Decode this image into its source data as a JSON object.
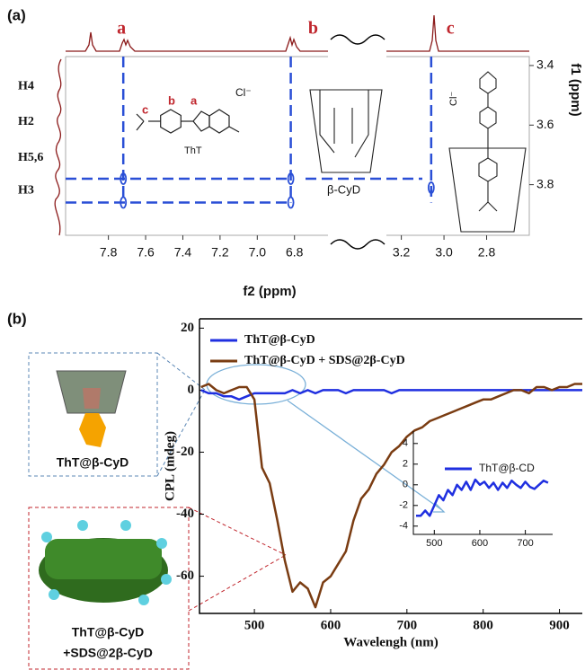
{
  "panels": [
    "(a)",
    "(b)"
  ],
  "chart_data": [
    {
      "type": "nmr-2d",
      "x_label": "f2 (ppm)",
      "y_label": "f1 (ppm)",
      "x_segments": [
        {
          "xlim": [
            8.03,
            6.62
          ],
          "xticks": [
            7.8,
            7.6,
            7.4,
            7.2,
            {
              "value": 7,
              "label": "7.0"
            },
            6.8
          ]
        },
        {
          "xlim": [
            3.27,
            2.6
          ],
          "xticks": [
            3.2,
            {
              "value": 3,
              "label": "3.0"
            },
            2.8
          ]
        }
      ],
      "ylim": [
        3.37,
        3.97
      ],
      "yticks": [
        3.4,
        3.6,
        3.8
      ],
      "peak_labels": [
        {
          "label": "a",
          "x": 7.73
        },
        {
          "label": "b",
          "x": 6.7
        },
        {
          "label": "c",
          "x": 2.97
        }
      ],
      "proton_labels": [
        {
          "label": "H4",
          "y": 3.47
        },
        {
          "label": "H2",
          "y": 3.59
        },
        {
          "label": "H5,6",
          "y": 3.71
        },
        {
          "label": "H3",
          "y": 3.82
        }
      ],
      "guide_x": [
        7.72,
        6.82,
        3.06
      ],
      "guide_y": [
        3.78,
        3.86
      ],
      "cross_peaks": {
        "x": [
          7.72,
          7.72,
          6.82,
          6.82,
          3.06
        ],
        "y": [
          3.78,
          3.86,
          3.78,
          3.86,
          3.81
        ]
      },
      "color": "#2a4fd6",
      "structure_labels": {
        "tht": "ThT",
        "site_c": "c",
        "site_b": "b",
        "site_a": "a",
        "counter_ion": "Cl⁻",
        "host": "β-CyD",
        "complex_ion": "Cl⁻"
      }
    },
    {
      "type": "line",
      "x_label": "Wavelengh (nm)",
      "y_label": "CPL (mdeg)",
      "xlim": [
        428,
        930
      ],
      "xticks": [
        500,
        600,
        700,
        800,
        900
      ],
      "ylim": [
        -72,
        23
      ],
      "yticks": [
        20,
        0,
        -20,
        -40,
        -60
      ],
      "legend": "upper left",
      "x": [
        430,
        440,
        450,
        460,
        470,
        480,
        490,
        500,
        510,
        520,
        530,
        540,
        550,
        560,
        570,
        580,
        590,
        600,
        610,
        620,
        630,
        640,
        650,
        660,
        670,
        680,
        690,
        700,
        710,
        720,
        730,
        740,
        750,
        760,
        770,
        780,
        790,
        800,
        810,
        820,
        830,
        840,
        850,
        860,
        870,
        880,
        890,
        900,
        910,
        920,
        930
      ],
      "series": [
        {
          "name": "ThT@β-CyD",
          "color": "#1f2fe0",
          "values": [
            0,
            -1,
            -1,
            -2,
            -2,
            -3,
            -2,
            -1,
            -1,
            -1,
            -1,
            -1,
            0,
            -1,
            0,
            -1,
            0,
            0,
            0,
            -1,
            0,
            0,
            0,
            0,
            0,
            -1,
            0,
            0,
            0,
            0,
            0,
            0,
            0,
            0,
            0,
            0,
            0,
            0,
            0,
            0,
            0,
            0,
            0,
            0,
            0,
            0,
            0,
            0,
            0,
            0,
            0
          ]
        },
        {
          "name": "ThT@β-CyD + SDS@2β-CyD",
          "color": "#7a3c12",
          "values": [
            1,
            2,
            0,
            -1,
            0,
            1,
            1,
            -3,
            -25,
            -30,
            -42,
            -55,
            -65,
            -62,
            -64,
            -70,
            -62,
            -60,
            -56,
            -52,
            -42,
            -35,
            -32,
            -27,
            -24,
            -20,
            -18,
            -15,
            -13,
            -12,
            -10,
            -9,
            -8,
            -7,
            -6,
            -5,
            -4,
            -3,
            -3,
            -2,
            -1,
            0,
            0,
            -1,
            1,
            1,
            0,
            1,
            1,
            2,
            2
          ]
        }
      ],
      "insets": {
        "single": "ThT@β-CyD",
        "combo_1": "ThT@β-CyD",
        "combo_2": "+SDS@2β-CyD"
      }
    },
    {
      "type": "line",
      "xlim": [
        454,
        760
      ],
      "xticks": [
        500,
        600,
        700
      ],
      "ylim": [
        -4.8,
        5.2
      ],
      "yticks": [
        4,
        2,
        0,
        -2,
        -4
      ],
      "legend": "upper right",
      "x": [
        460,
        470,
        480,
        490,
        500,
        510,
        520,
        530,
        540,
        550,
        560,
        570,
        580,
        590,
        600,
        610,
        620,
        630,
        640,
        650,
        660,
        670,
        680,
        690,
        700,
        710,
        720,
        730,
        740,
        750
      ],
      "series": [
        {
          "name": "ThT@β-CD",
          "color": "#1f2fe0",
          "values": [
            -3,
            -3,
            -2.5,
            -3,
            -2,
            -1,
            -1.5,
            -0.5,
            -1,
            0,
            -0.5,
            0.3,
            -0.5,
            0.5,
            0,
            0.3,
            -0.3,
            0.2,
            -0.5,
            0.2,
            -0.3,
            0.4,
            0,
            -0.3,
            0.3,
            -0.2,
            -0.4,
            0,
            0.4,
            0.2
          ]
        }
      ]
    }
  ]
}
